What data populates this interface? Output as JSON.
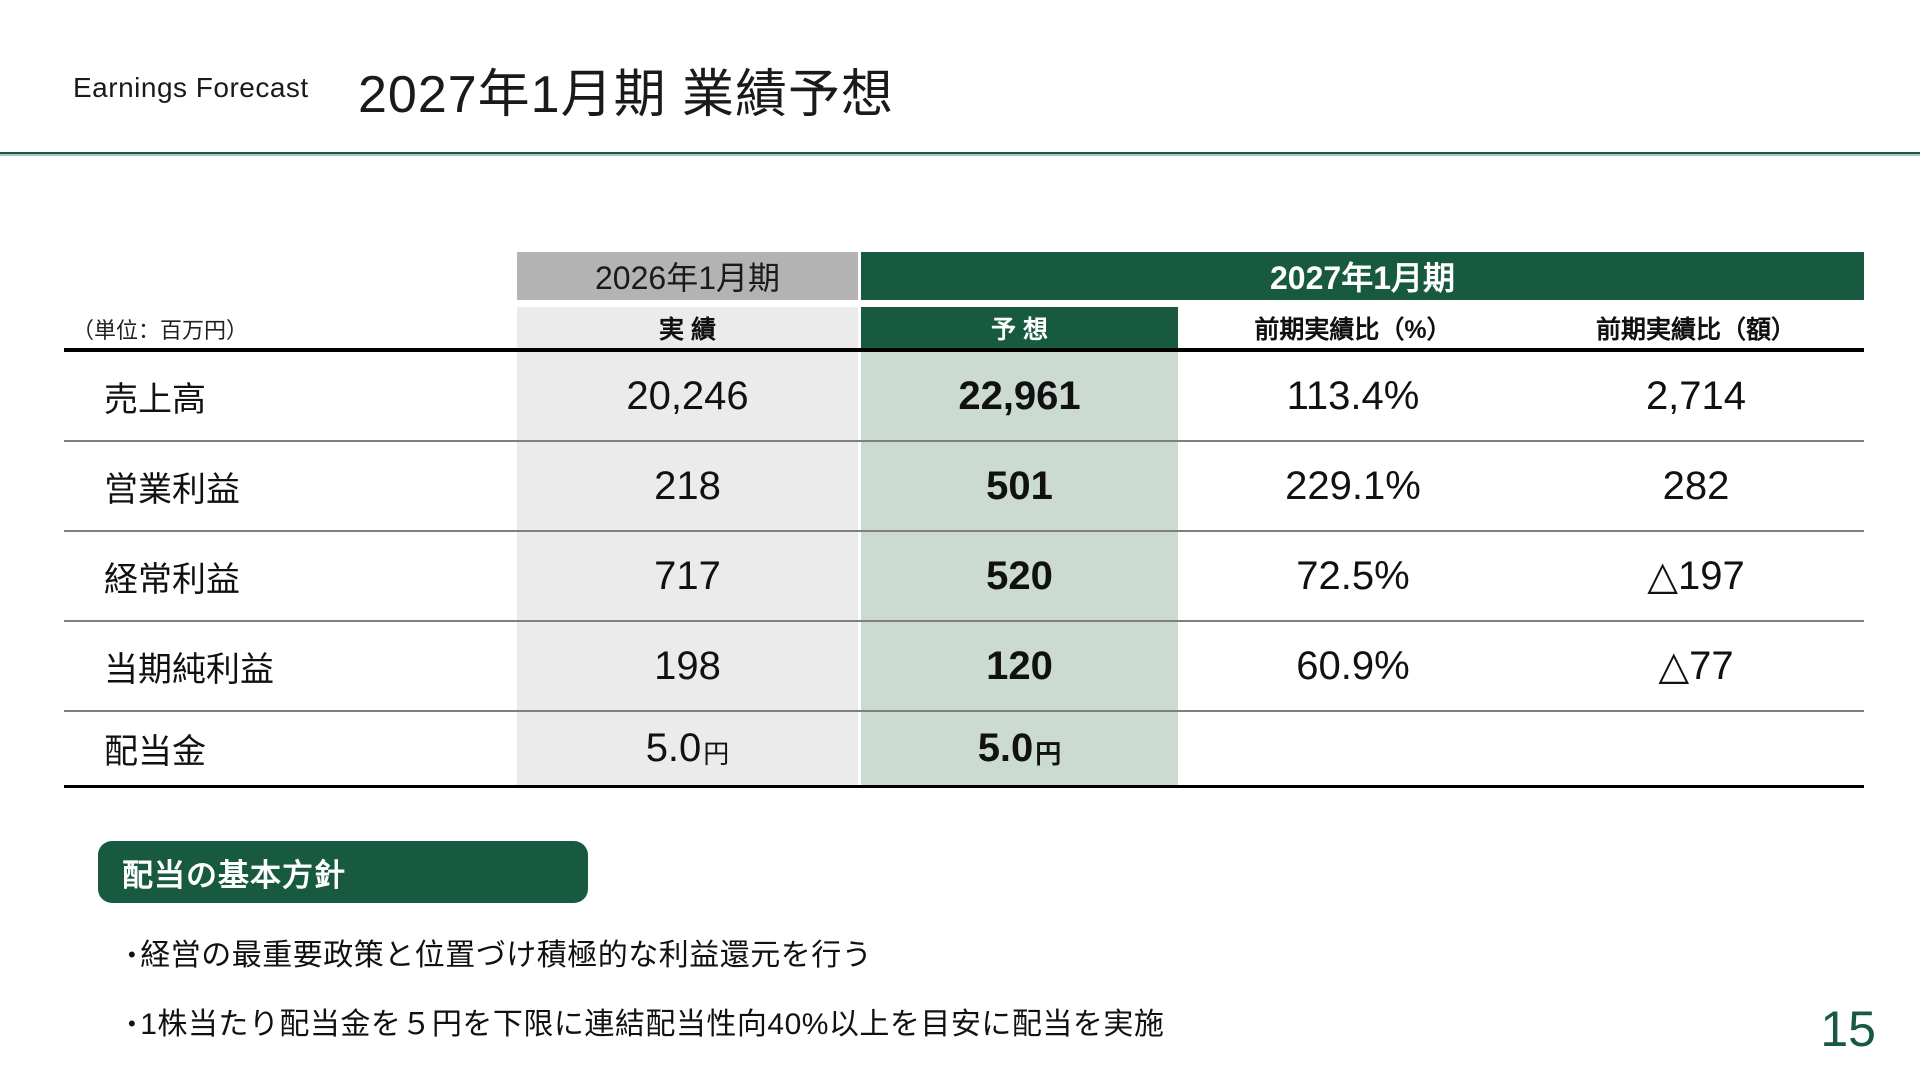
{
  "slide": {
    "eyebrow": "Earnings Forecast",
    "title": "2027年1月期 業績予想",
    "page_number": "15"
  },
  "colors": {
    "accent": "#175A40",
    "accent_light": "#A9C9BB",
    "header_gray": "#B3B3B3",
    "cell_gray": "#EBEBEB",
    "cell_green": "#CBDBD2",
    "separator_gray": "#7F7F7F"
  },
  "table": {
    "unit_note": "（単位：百万円）",
    "col_prev_period": "2026年1月期",
    "col_current_period": "2027年1月期",
    "col_actual": "実 績",
    "col_forecast": "予 想",
    "col_yoy_pct": "前期実績比（%）",
    "col_yoy_amt": "前期実績比（額）",
    "rows": [
      {
        "label": "売上高",
        "actual": "20,246",
        "forecast": "22,961",
        "yoy_pct": "113.4%",
        "yoy_amt": "2,714"
      },
      {
        "label": "営業利益",
        "actual": "218",
        "forecast": "501",
        "yoy_pct": "229.1%",
        "yoy_amt": "282"
      },
      {
        "label": "経常利益",
        "actual": "717",
        "forecast": "520",
        "yoy_pct": "72.5%",
        "yoy_amt": "△197"
      },
      {
        "label": "当期純利益",
        "actual": "198",
        "forecast": "120",
        "yoy_pct": "60.9%",
        "yoy_amt": "△77"
      },
      {
        "label": "配当金",
        "actual": "5.0",
        "actual_unit": "円",
        "forecast": "5.0",
        "forecast_unit": "円",
        "yoy_pct": "",
        "yoy_amt": ""
      }
    ]
  },
  "dividend_policy": {
    "heading": "配当の基本方針",
    "bullet_char": "•",
    "bullets": [
      "経営の最重要政策と位置づけ積極的な利益還元を行う",
      "1株当たり配当金を５円を下限に連結配当性向40%以上を目安に配当を実施"
    ]
  }
}
